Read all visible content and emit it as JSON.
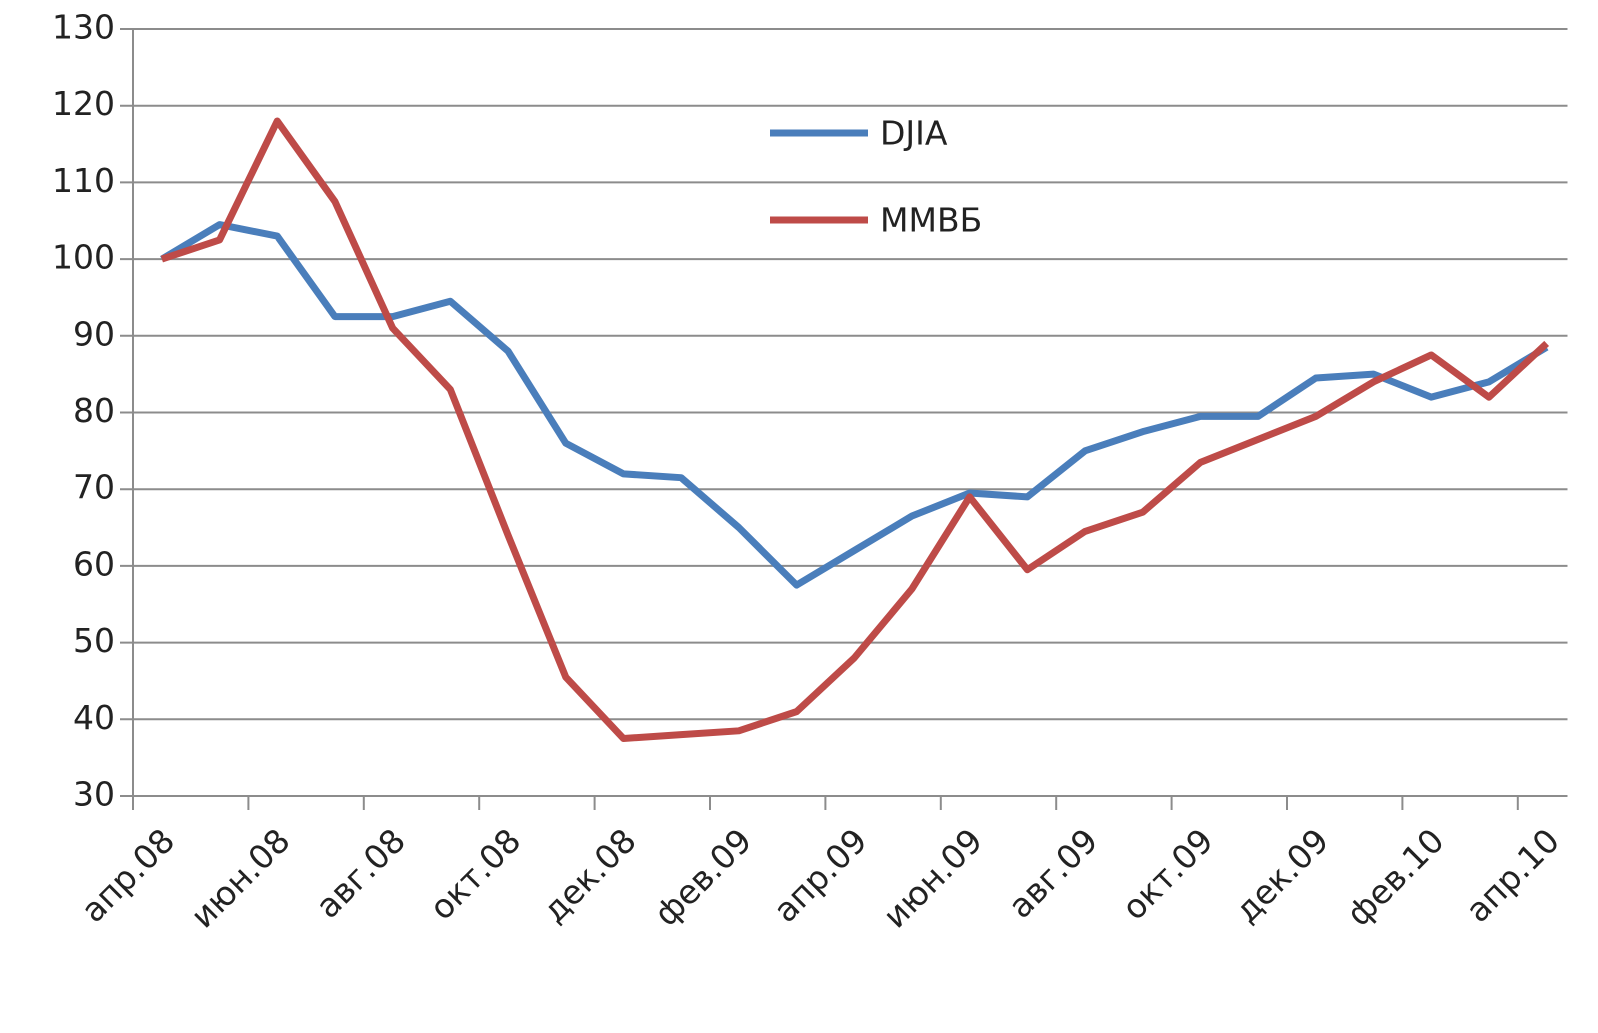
{
  "chart_data": {
    "type": "line",
    "categories": [
      "апр.08",
      null,
      "июн.08",
      null,
      "авг.08",
      null,
      "окт.08",
      null,
      "дек.08",
      null,
      "фев.09",
      null,
      "апр.09",
      null,
      "июн.09",
      null,
      "авг.09",
      null,
      "окт.09",
      null,
      "дек.09",
      null,
      "фев.10",
      null,
      "апр.10"
    ],
    "series": [
      {
        "name": "DJIA",
        "color": "#4a7ebb",
        "values": [
          100,
          104.5,
          103,
          92.5,
          92.5,
          94.5,
          88,
          76,
          72,
          71.5,
          65,
          57.5,
          62,
          66.5,
          69.5,
          69,
          75,
          77.5,
          79.5,
          79.5,
          84.5,
          85,
          82,
          84,
          88.5
        ]
      },
      {
        "name": "ММВБ",
        "color": "#be4b48",
        "values": [
          100,
          102.5,
          118,
          107.5,
          91,
          83,
          64,
          45.5,
          37.5,
          38,
          38.5,
          41,
          48,
          57,
          69,
          59.5,
          64.5,
          67,
          73.5,
          76.5,
          79.5,
          84,
          87.5,
          82,
          89
        ]
      }
    ],
    "ylim": [
      30,
      130
    ],
    "yticks": [
      30,
      40,
      50,
      60,
      70,
      80,
      90,
      100,
      110,
      120,
      130
    ],
    "grid": true
  }
}
